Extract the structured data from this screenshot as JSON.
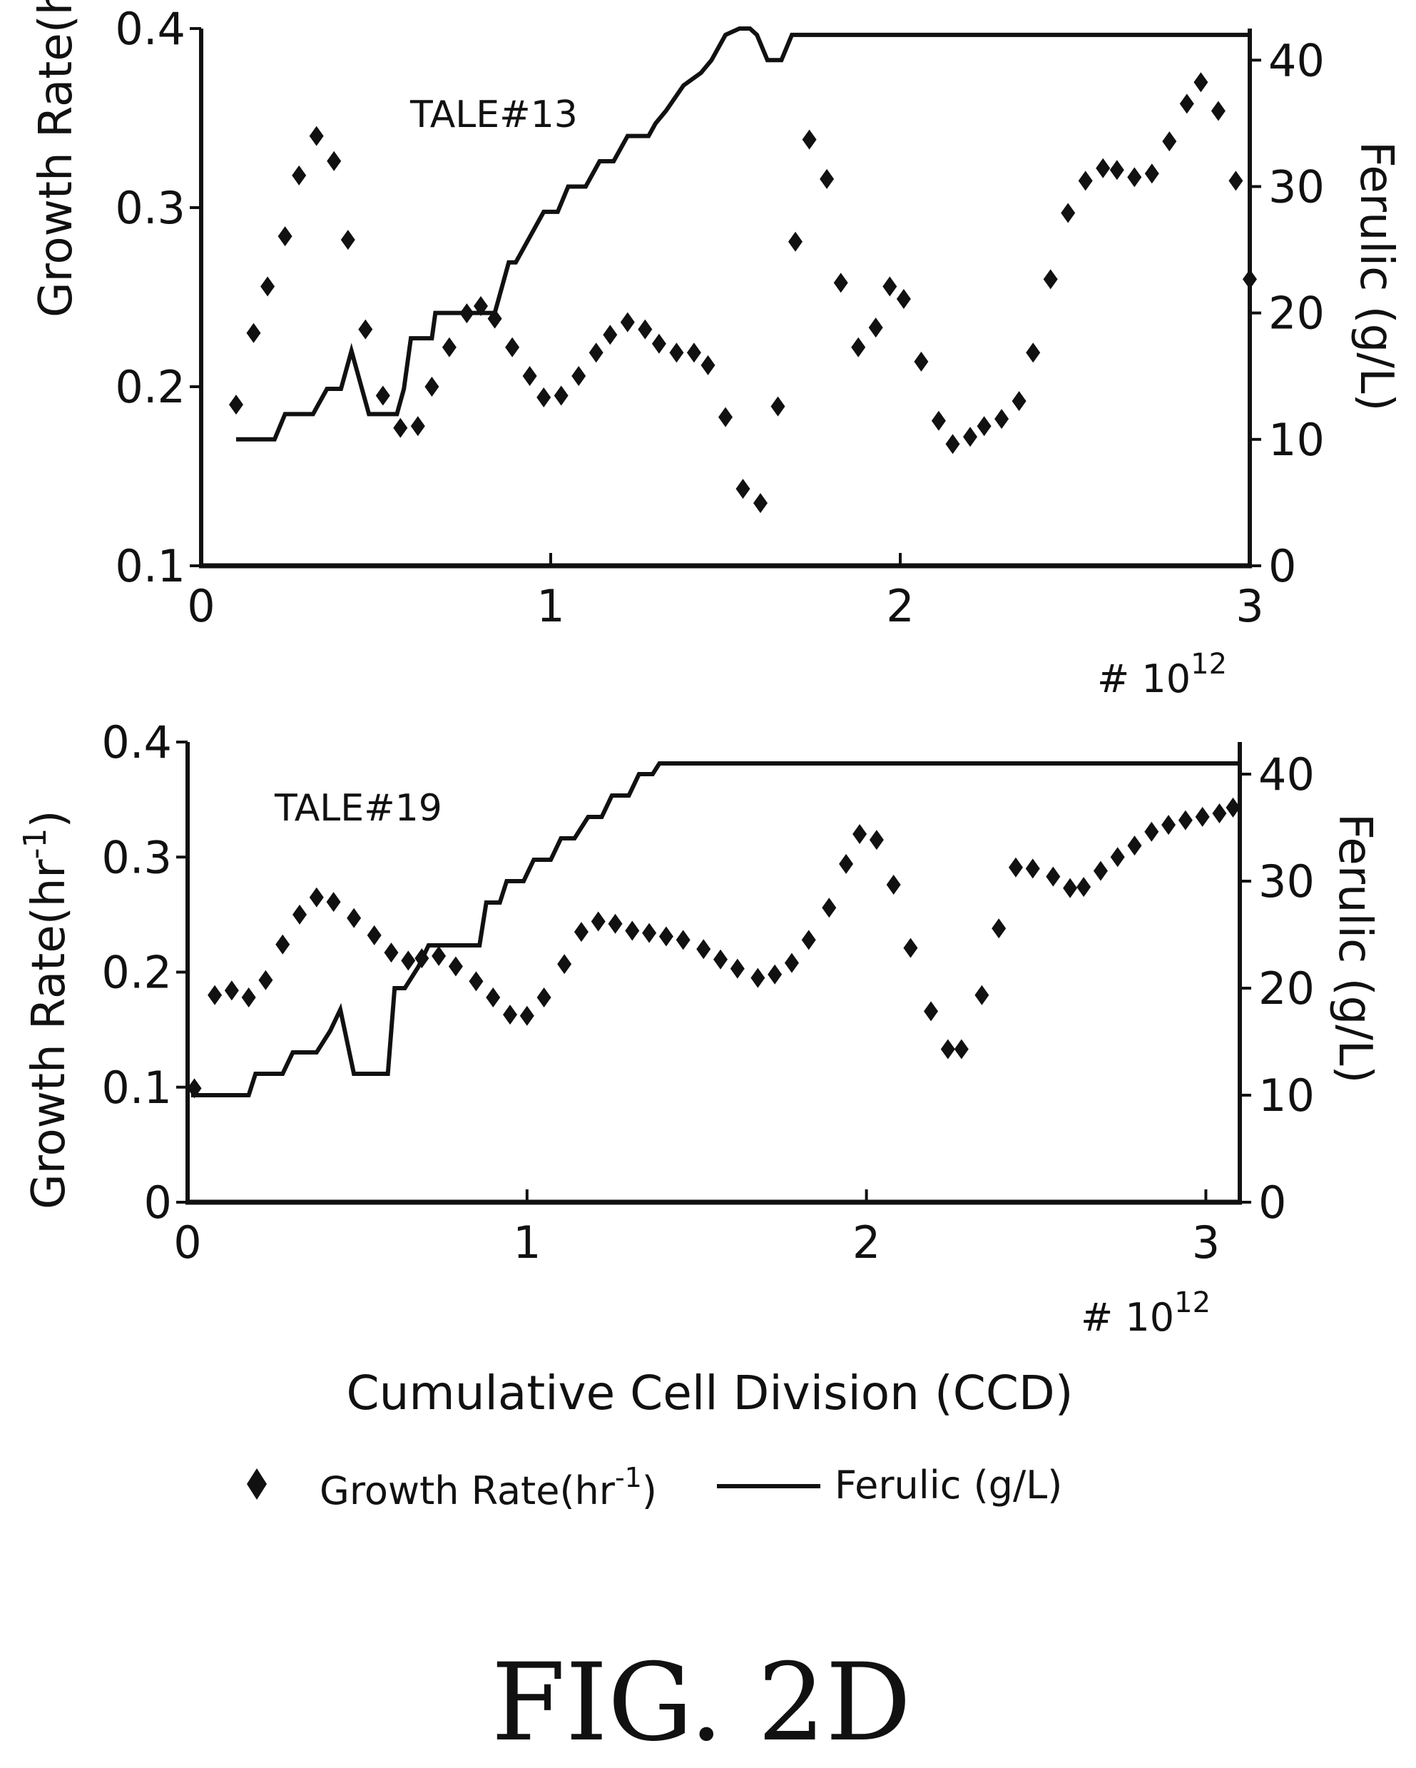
{
  "shared": {
    "xlabel": "Cumulative Cell Division (CCD)",
    "x_multiplier": "# 10",
    "x_multiplier_exp": "12",
    "x_unit": 1000000000000.0,
    "left_axis_label": "Growth Rate(hr",
    "left_axis_label_exp": "-1",
    "left_axis_label_close": ")",
    "right_axis_label": "Ferulic (g/L)",
    "legend": [
      {
        "marker": "diamond",
        "label": "Growth Rate(hr",
        "label_exp": "-1",
        "label_close": ")"
      },
      {
        "marker": "line",
        "label": "Ferulic (g/L)"
      }
    ],
    "colors": {
      "series": "#111111",
      "background": "#ffffff"
    },
    "figure_label": "FIG. 2D"
  },
  "chart_data": [
    {
      "type": "scatter",
      "annotation": "TALE#13",
      "xlim": [
        0,
        3
      ],
      "ylim_left": [
        0.1,
        0.4
      ],
      "ylim_right": [
        0,
        42.5
      ],
      "x_ticks": [
        "0",
        "1",
        "2",
        "3"
      ],
      "y_left_ticks": [
        "0.1",
        "0.2",
        "0.3",
        "0.4"
      ],
      "y_right_ticks": [
        "0",
        "10",
        "20",
        "30",
        "40"
      ],
      "series": [
        {
          "axis": "left",
          "marker": "diamond",
          "points": [
            [
              0.1,
              0.19
            ],
            [
              0.15,
              0.23
            ],
            [
              0.19,
              0.256
            ],
            [
              0.24,
              0.284
            ],
            [
              0.28,
              0.318
            ],
            [
              0.33,
              0.34
            ],
            [
              0.38,
              0.326
            ],
            [
              0.42,
              0.282
            ],
            [
              0.47,
              0.232
            ],
            [
              0.52,
              0.195
            ],
            [
              0.57,
              0.177
            ],
            [
              0.62,
              0.178
            ],
            [
              0.66,
              0.2
            ],
            [
              0.71,
              0.222
            ],
            [
              0.76,
              0.241
            ],
            [
              0.8,
              0.245
            ],
            [
              0.84,
              0.238
            ],
            [
              0.89,
              0.222
            ],
            [
              0.94,
              0.206
            ],
            [
              0.98,
              0.194
            ],
            [
              1.03,
              0.195
            ],
            [
              1.08,
              0.206
            ],
            [
              1.13,
              0.219
            ],
            [
              1.17,
              0.229
            ],
            [
              1.22,
              0.236
            ],
            [
              1.27,
              0.232
            ],
            [
              1.31,
              0.224
            ],
            [
              1.36,
              0.219
            ],
            [
              1.41,
              0.219
            ],
            [
              1.45,
              0.212
            ],
            [
              1.5,
              0.183
            ],
            [
              1.55,
              0.143
            ],
            [
              1.6,
              0.135
            ],
            [
              1.65,
              0.189
            ],
            [
              1.7,
              0.281
            ],
            [
              1.74,
              0.338
            ],
            [
              1.79,
              0.316
            ],
            [
              1.83,
              0.258
            ],
            [
              1.88,
              0.222
            ],
            [
              1.93,
              0.233
            ],
            [
              1.97,
              0.256
            ],
            [
              2.01,
              0.249
            ],
            [
              2.06,
              0.214
            ],
            [
              2.11,
              0.181
            ],
            [
              2.15,
              0.168
            ],
            [
              2.2,
              0.172
            ],
            [
              2.24,
              0.178
            ],
            [
              2.29,
              0.182
            ],
            [
              2.34,
              0.192
            ],
            [
              2.38,
              0.219
            ],
            [
              2.43,
              0.26
            ],
            [
              2.48,
              0.297
            ],
            [
              2.53,
              0.315
            ],
            [
              2.58,
              0.322
            ],
            [
              2.62,
              0.321
            ],
            [
              2.67,
              0.317
            ],
            [
              2.72,
              0.319
            ],
            [
              2.77,
              0.337
            ],
            [
              2.82,
              0.358
            ],
            [
              2.86,
              0.37
            ],
            [
              2.91,
              0.354
            ],
            [
              2.96,
              0.315
            ],
            [
              3.0,
              0.26
            ]
          ]
        },
        {
          "axis": "right",
          "marker": "line",
          "name": "Ferulic (g/L)",
          "points": [
            [
              0.1,
              10
            ],
            [
              0.21,
              10
            ],
            [
              0.24,
              12
            ],
            [
              0.32,
              12
            ],
            [
              0.36,
              14
            ],
            [
              0.4,
              14
            ],
            [
              0.43,
              17
            ],
            [
              0.48,
              12
            ],
            [
              0.56,
              12
            ],
            [
              0.58,
              14
            ],
            [
              0.6,
              18
            ],
            [
              0.66,
              18
            ],
            [
              0.67,
              20
            ],
            [
              0.84,
              20
            ],
            [
              0.86,
              22
            ],
            [
              0.88,
              24
            ],
            [
              0.9,
              24
            ],
            [
              0.94,
              26
            ],
            [
              0.98,
              28
            ],
            [
              1.02,
              28
            ],
            [
              1.05,
              30
            ],
            [
              1.1,
              30
            ],
            [
              1.14,
              32
            ],
            [
              1.18,
              32
            ],
            [
              1.22,
              34
            ],
            [
              1.28,
              34
            ],
            [
              1.3,
              35
            ],
            [
              1.33,
              36
            ],
            [
              1.38,
              38
            ],
            [
              1.43,
              39
            ],
            [
              1.46,
              40
            ],
            [
              1.5,
              42
            ],
            [
              1.54,
              44
            ],
            [
              1.57,
              44
            ],
            [
              1.59,
              42
            ],
            [
              1.62,
              40
            ],
            [
              1.66,
              40
            ],
            [
              1.69,
              42
            ],
            [
              3.0,
              42
            ]
          ]
        }
      ]
    },
    {
      "type": "scatter",
      "annotation": "TALE#19",
      "xlim": [
        0,
        3.1
      ],
      "ylim_left": [
        0,
        0.4
      ],
      "ylim_right": [
        0,
        43
      ],
      "x_ticks": [
        "0",
        "1",
        "2",
        "3"
      ],
      "y_left_ticks": [
        "0",
        "0.1",
        "0.2",
        "0.3",
        "0.4"
      ],
      "y_right_ticks": [
        "0",
        "10",
        "20",
        "30",
        "40"
      ],
      "series": [
        {
          "axis": "left",
          "marker": "diamond",
          "points": [
            [
              0.02,
              0.099
            ],
            [
              0.08,
              0.18
            ],
            [
              0.13,
              0.184
            ],
            [
              0.18,
              0.178
            ],
            [
              0.23,
              0.193
            ],
            [
              0.28,
              0.224
            ],
            [
              0.33,
              0.25
            ],
            [
              0.38,
              0.265
            ],
            [
              0.43,
              0.261
            ],
            [
              0.49,
              0.247
            ],
            [
              0.55,
              0.232
            ],
            [
              0.6,
              0.217
            ],
            [
              0.65,
              0.21
            ],
            [
              0.69,
              0.212
            ],
            [
              0.74,
              0.214
            ],
            [
              0.79,
              0.205
            ],
            [
              0.85,
              0.192
            ],
            [
              0.9,
              0.178
            ],
            [
              0.95,
              0.163
            ],
            [
              1.0,
              0.162
            ],
            [
              1.05,
              0.178
            ],
            [
              1.11,
              0.207
            ],
            [
              1.16,
              0.235
            ],
            [
              1.21,
              0.244
            ],
            [
              1.26,
              0.242
            ],
            [
              1.31,
              0.236
            ],
            [
              1.36,
              0.234
            ],
            [
              1.41,
              0.231
            ],
            [
              1.46,
              0.228
            ],
            [
              1.52,
              0.22
            ],
            [
              1.57,
              0.211
            ],
            [
              1.62,
              0.203
            ],
            [
              1.68,
              0.195
            ],
            [
              1.73,
              0.198
            ],
            [
              1.78,
              0.208
            ],
            [
              1.83,
              0.228
            ],
            [
              1.89,
              0.256
            ],
            [
              1.94,
              0.294
            ],
            [
              1.98,
              0.32
            ],
            [
              2.03,
              0.315
            ],
            [
              2.08,
              0.276
            ],
            [
              2.13,
              0.221
            ],
            [
              2.19,
              0.166
            ],
            [
              2.24,
              0.133
            ],
            [
              2.28,
              0.133
            ],
            [
              2.34,
              0.18
            ],
            [
              2.39,
              0.238
            ],
            [
              2.44,
              0.291
            ],
            [
              2.49,
              0.29
            ],
            [
              2.55,
              0.283
            ],
            [
              2.6,
              0.273
            ],
            [
              2.64,
              0.274
            ],
            [
              2.69,
              0.288
            ],
            [
              2.74,
              0.3
            ],
            [
              2.79,
              0.31
            ],
            [
              2.84,
              0.322
            ],
            [
              2.89,
              0.328
            ],
            [
              2.94,
              0.332
            ],
            [
              2.99,
              0.335
            ],
            [
              3.04,
              0.338
            ],
            [
              3.08,
              0.343
            ]
          ]
        },
        {
          "axis": "right",
          "marker": "line",
          "name": "Ferulic (g/L)",
          "points": [
            [
              0.01,
              10
            ],
            [
              0.18,
              10
            ],
            [
              0.2,
              12
            ],
            [
              0.28,
              12
            ],
            [
              0.31,
              14
            ],
            [
              0.38,
              14
            ],
            [
              0.42,
              16
            ],
            [
              0.45,
              18
            ],
            [
              0.49,
              12
            ],
            [
              0.59,
              12
            ],
            [
              0.61,
              20
            ],
            [
              0.64,
              20
            ],
            [
              0.68,
              22
            ],
            [
              0.71,
              24
            ],
            [
              0.86,
              24
            ],
            [
              0.88,
              28
            ],
            [
              0.92,
              28
            ],
            [
              0.94,
              30
            ],
            [
              0.99,
              30
            ],
            [
              1.02,
              32
            ],
            [
              1.07,
              32
            ],
            [
              1.1,
              34
            ],
            [
              1.14,
              34
            ],
            [
              1.18,
              36
            ],
            [
              1.22,
              36
            ],
            [
              1.25,
              38
            ],
            [
              1.3,
              38
            ],
            [
              1.33,
              40
            ],
            [
              1.37,
              40
            ],
            [
              1.39,
              41
            ],
            [
              3.1,
              41
            ]
          ]
        }
      ]
    }
  ]
}
